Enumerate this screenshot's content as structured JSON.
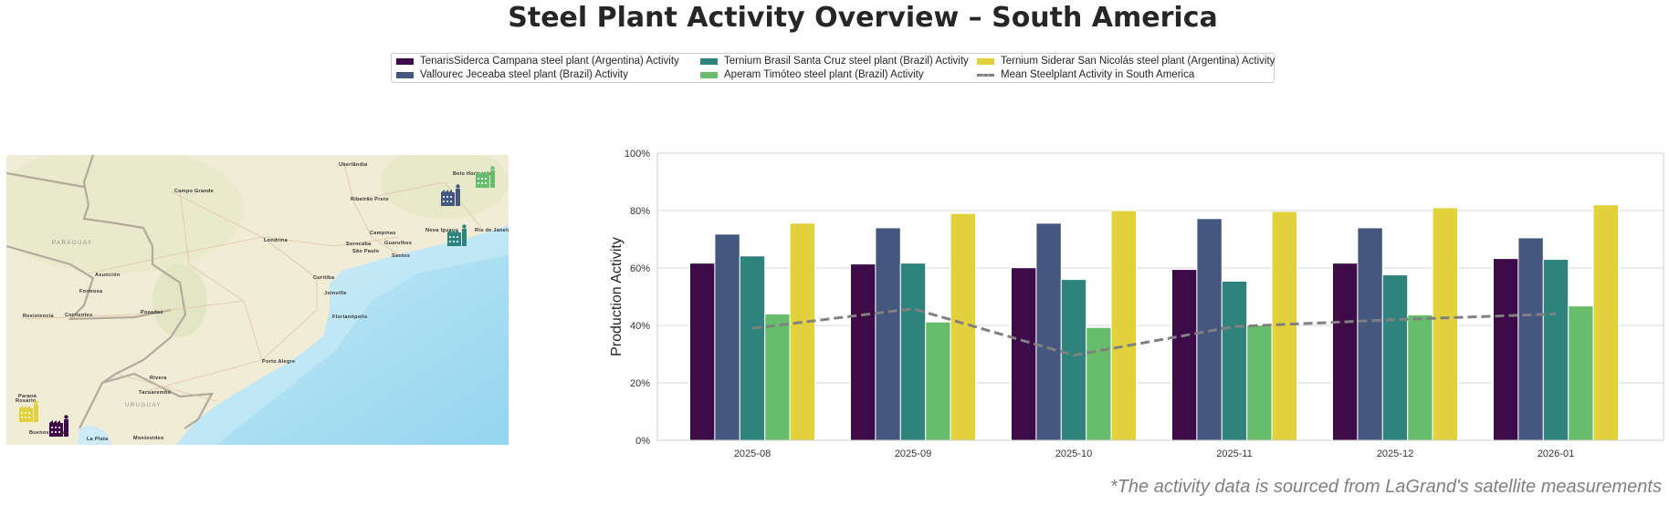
{
  "title": "Steel Plant Activity Overview – South America",
  "footer_note": "*The activity data is sourced from LaGrand's satellite measurements",
  "map": {
    "labels": [
      {
        "text": "Uberlândia"
      },
      {
        "text": "Campo Grande"
      },
      {
        "text": "Belo Horizonte"
      },
      {
        "text": "Ribeirão Preto"
      },
      {
        "text": "PARAGUAY"
      },
      {
        "text": "Campinas"
      },
      {
        "text": "Nova Iguaçu"
      },
      {
        "text": "Rio de Janeiro"
      },
      {
        "text": "Londrina"
      },
      {
        "text": "Sorocaba"
      },
      {
        "text": "Guarulhos"
      },
      {
        "text": "São Paulo"
      },
      {
        "text": "Santos"
      },
      {
        "text": "Asunción"
      },
      {
        "text": "Curitiba"
      },
      {
        "text": "Formosa"
      },
      {
        "text": "Joinville"
      },
      {
        "text": "Resistencia"
      },
      {
        "text": "Corrientes"
      },
      {
        "text": "Posadas"
      },
      {
        "text": "Florianópolis"
      },
      {
        "text": "Porto Alegre"
      },
      {
        "text": "Rivera"
      },
      {
        "text": "Paraná"
      },
      {
        "text": "Tacuarembó"
      },
      {
        "text": "URUGUAY"
      },
      {
        "text": "Rosario"
      },
      {
        "text": "Buenos Aires"
      },
      {
        "text": "La Plata"
      },
      {
        "text": "Montevideo"
      }
    ],
    "plant_markers": [
      {
        "plant": "TenarisSiderca Campana",
        "icon": "factory-icon",
        "color": "#3d0b47"
      },
      {
        "plant": "Vallourec Jeceaba",
        "icon": "factory-icon",
        "color": "#46577f"
      },
      {
        "plant": "Ternium Brasil Santa Cruz",
        "icon": "factory-icon",
        "color": "#2e837c"
      },
      {
        "plant": "Aperam Timóteo",
        "icon": "factory-icon",
        "color": "#67bd6b"
      },
      {
        "plant": "Ternium Siderar San Nicolás",
        "icon": "factory-icon",
        "color": "#e2d13c"
      }
    ]
  },
  "chart_data": {
    "type": "bar",
    "title": "",
    "xlabel": "",
    "ylabel": "Production Activity",
    "ylim": [
      0,
      100
    ],
    "yticks": [
      "0%",
      "20%",
      "40%",
      "60%",
      "80%",
      "100%"
    ],
    "grid": true,
    "legend_position": "top-center",
    "categories": [
      "2025-08",
      "2025-09",
      "2025-10",
      "2025-11",
      "2025-12",
      "2026-01"
    ],
    "series": [
      {
        "name": "TenarisSiderca Campana steel plant (Argentina) Activity",
        "color": "#3d0b47",
        "values": [
          61.7,
          61.4,
          60.1,
          59.5,
          61.7,
          63.3
        ]
      },
      {
        "name": "Vallourec Jeceaba steel plant (Brazil) Activity",
        "color": "#46577f",
        "values": [
          71.8,
          74.0,
          75.6,
          77.2,
          74.0,
          70.5
        ]
      },
      {
        "name": "Ternium Brasil Santa Cruz steel plant (Brazil) Activity",
        "color": "#2e837c",
        "values": [
          64.2,
          61.7,
          56.0,
          55.4,
          57.6,
          63.0
        ]
      },
      {
        "name": "Aperam Timóteo steel plant (Brazil) Activity",
        "color": "#67bd6b",
        "values": [
          44.0,
          41.2,
          39.3,
          40.1,
          43.7,
          46.8
        ]
      },
      {
        "name": "Ternium Siderar San Nicolás steel plant (Argentina) Activity",
        "color": "#e2d13c",
        "values": [
          75.6,
          79.0,
          80.0,
          79.7,
          81.0,
          82.0
        ]
      }
    ],
    "mean_line": {
      "name": "Mean Steelplant Activity in South America",
      "color": "#808080",
      "style": "dashed",
      "values": [
        39.0,
        45.8,
        29.6,
        39.6,
        42.0,
        44.0
      ]
    }
  }
}
